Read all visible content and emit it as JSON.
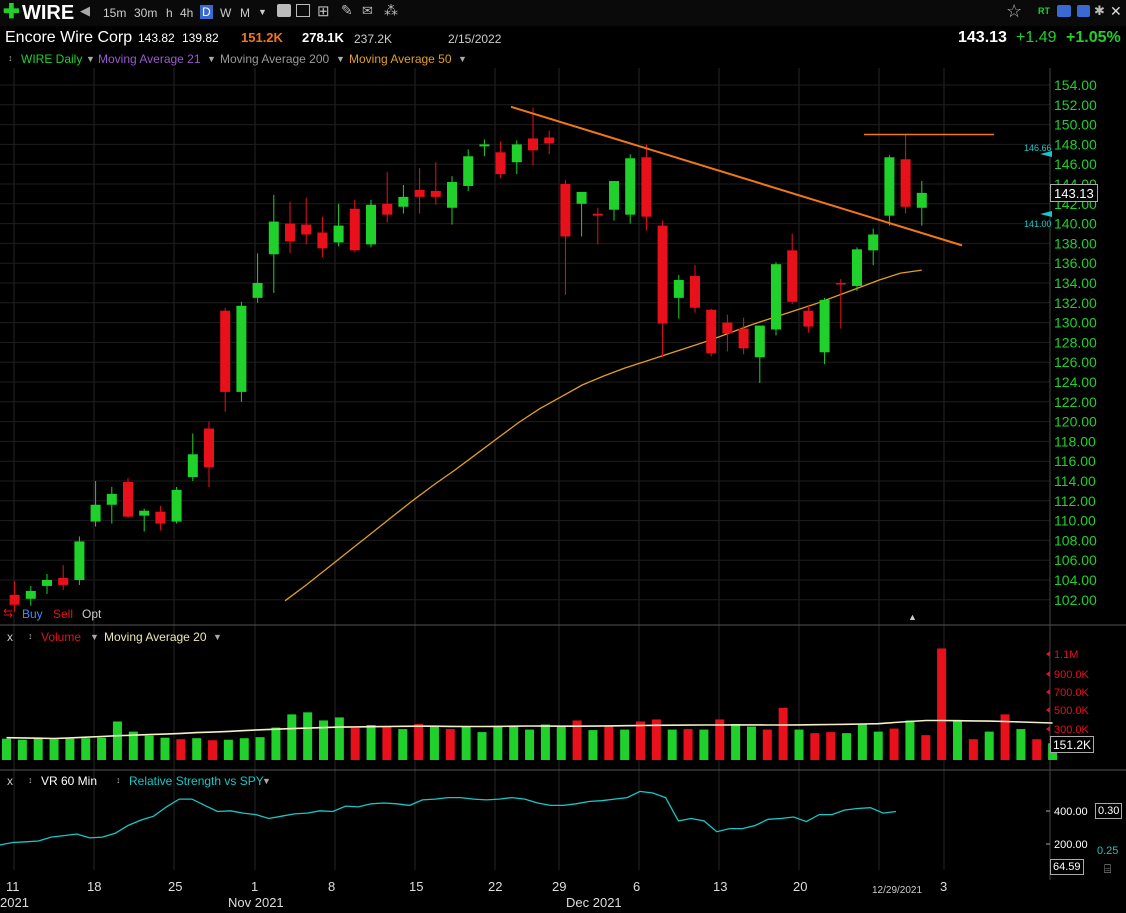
{
  "toolbar": {
    "symbol": "WIRE",
    "timeframes": [
      "15m",
      "30m",
      "h",
      "4h",
      "D",
      "W",
      "M"
    ],
    "selected_timeframe": "D"
  },
  "quote": {
    "name": "Encore Wire Corp",
    "high": "143.82",
    "low": "139.82",
    "vol1": "151.2K",
    "vol2": "278.1K",
    "vol3": "237.2K",
    "date": "2/15/2022",
    "last": "143.13",
    "change": "+1.49",
    "change_pct": "+1.05%"
  },
  "price_legend": {
    "series_label": "WIRE Daily",
    "ma21": "Moving Average 21",
    "ma200": "Moving Average 200",
    "ma50": "Moving Average 50"
  },
  "order_buttons": {
    "buy": "Buy",
    "sell": "Sell",
    "opt": "Opt"
  },
  "volume_legend": {
    "close": "x",
    "label": "Volume",
    "ma": "Moving Average 20"
  },
  "rs_legend": {
    "close": "x",
    "vr": "VR 60 Min",
    "rs": "Relative Strength vs SPY"
  },
  "price_tags": {
    "last": "143.13",
    "upper": "146.66",
    "lower": "141.00"
  },
  "volume_tags": {
    "last": "151.2K"
  },
  "rs_tags": {
    "value": "0.30",
    "value2": "0.25",
    "last": "64.59"
  },
  "date_label": "12/29/2021",
  "colors": {
    "up": "#1fd12a",
    "down": "#e8101a",
    "ma50": "#e0a020",
    "trend": "#f07818",
    "rs": "#16c8c8",
    "axis_text": "#1fd12a"
  },
  "chart_data": [
    {
      "type": "candlestick",
      "title": "WIRE Daily",
      "ylim": [
        100,
        156
      ],
      "y_ticks": [
        "154.00",
        "152.00",
        "150.00",
        "148.00",
        "146.00",
        "144.00",
        "142.00",
        "140.00",
        "138.00",
        "136.00",
        "134.00",
        "132.00",
        "130.00",
        "128.00",
        "126.00",
        "124.00",
        "122.00",
        "120.00",
        "118.00",
        "116.00",
        "114.00",
        "112.00",
        "110.00",
        "108.00",
        "106.00",
        "104.00",
        "102.00"
      ],
      "x_ticks": [
        "11",
        "18",
        "25",
        "1",
        "8",
        "15",
        "22",
        "29",
        "6",
        "13",
        "20",
        "3"
      ],
      "x_month_labels": [
        "2021",
        "Nov 2021",
        "Dec 2021"
      ],
      "candles": [
        {
          "o": 102.5,
          "h": 103.9,
          "l": 100.8,
          "c": 101.5
        },
        {
          "o": 102.1,
          "h": 103.4,
          "l": 101.4,
          "c": 102.9
        },
        {
          "o": 103.4,
          "h": 104.6,
          "l": 102.6,
          "c": 104.0
        },
        {
          "o": 104.2,
          "h": 105.5,
          "l": 103.0,
          "c": 103.5
        },
        {
          "o": 104.0,
          "h": 108.4,
          "l": 103.5,
          "c": 107.9
        },
        {
          "o": 109.9,
          "h": 114.0,
          "l": 109.4,
          "c": 111.6
        },
        {
          "o": 111.6,
          "h": 113.4,
          "l": 109.7,
          "c": 112.7
        },
        {
          "o": 113.9,
          "h": 114.3,
          "l": 110.3,
          "c": 110.4
        },
        {
          "o": 110.5,
          "h": 111.2,
          "l": 108.9,
          "c": 111.0
        },
        {
          "o": 110.9,
          "h": 111.5,
          "l": 109.0,
          "c": 109.7
        },
        {
          "o": 109.9,
          "h": 113.4,
          "l": 109.7,
          "c": 113.1
        },
        {
          "o": 114.4,
          "h": 118.8,
          "l": 114.0,
          "c": 116.7
        },
        {
          "o": 119.3,
          "h": 120.0,
          "l": 113.4,
          "c": 115.4
        },
        {
          "o": 131.2,
          "h": 131.5,
          "l": 121.0,
          "c": 123.0
        },
        {
          "o": 123.0,
          "h": 132.1,
          "l": 122.0,
          "c": 131.7
        },
        {
          "o": 132.5,
          "h": 137.0,
          "l": 132.0,
          "c": 134.0
        },
        {
          "o": 136.9,
          "h": 142.9,
          "l": 133.0,
          "c": 140.2
        },
        {
          "o": 140.0,
          "h": 142.2,
          "l": 137.0,
          "c": 138.2
        },
        {
          "o": 139.9,
          "h": 142.6,
          "l": 137.9,
          "c": 138.9
        },
        {
          "o": 139.1,
          "h": 140.7,
          "l": 136.6,
          "c": 137.5
        },
        {
          "o": 138.1,
          "h": 142.0,
          "l": 137.7,
          "c": 139.8
        },
        {
          "o": 141.5,
          "h": 142.4,
          "l": 137.1,
          "c": 137.3
        },
        {
          "o": 137.9,
          "h": 142.4,
          "l": 137.6,
          "c": 141.9
        },
        {
          "o": 142.0,
          "h": 145.2,
          "l": 140.1,
          "c": 140.9
        },
        {
          "o": 141.7,
          "h": 143.9,
          "l": 141.0,
          "c": 142.7
        },
        {
          "o": 143.4,
          "h": 145.6,
          "l": 141.0,
          "c": 142.7
        },
        {
          "o": 143.3,
          "h": 146.2,
          "l": 141.9,
          "c": 142.7
        },
        {
          "o": 141.6,
          "h": 144.8,
          "l": 139.9,
          "c": 144.2
        },
        {
          "o": 143.8,
          "h": 147.5,
          "l": 143.3,
          "c": 146.8
        },
        {
          "o": 147.8,
          "h": 148.5,
          "l": 146.8,
          "c": 148.0
        },
        {
          "o": 147.2,
          "h": 148.3,
          "l": 144.6,
          "c": 145.0
        },
        {
          "o": 146.2,
          "h": 148.4,
          "l": 145.0,
          "c": 148.0
        },
        {
          "o": 148.6,
          "h": 151.7,
          "l": 145.9,
          "c": 147.4
        },
        {
          "o": 148.7,
          "h": 149.4,
          "l": 147.0,
          "c": 148.1
        },
        {
          "o": 144.0,
          "h": 144.4,
          "l": 132.8,
          "c": 138.7
        },
        {
          "o": 142.0,
          "h": 142.9,
          "l": 138.7,
          "c": 143.2
        },
        {
          "o": 141.0,
          "h": 141.6,
          "l": 137.9,
          "c": 140.8
        },
        {
          "o": 141.4,
          "h": 144.1,
          "l": 140.3,
          "c": 144.3
        },
        {
          "o": 140.9,
          "h": 147.0,
          "l": 140.0,
          "c": 146.6
        },
        {
          "o": 146.7,
          "h": 148.0,
          "l": 139.3,
          "c": 140.7
        },
        {
          "o": 139.8,
          "h": 140.3,
          "l": 126.5,
          "c": 129.9
        },
        {
          "o": 132.5,
          "h": 134.8,
          "l": 130.4,
          "c": 134.3
        },
        {
          "o": 134.7,
          "h": 135.8,
          "l": 131.0,
          "c": 131.5
        },
        {
          "o": 131.3,
          "h": 131.4,
          "l": 126.6,
          "c": 126.9
        },
        {
          "o": 130.0,
          "h": 130.8,
          "l": 127.1,
          "c": 128.9
        },
        {
          "o": 129.4,
          "h": 130.5,
          "l": 126.8,
          "c": 127.4
        },
        {
          "o": 126.5,
          "h": 129.7,
          "l": 123.9,
          "c": 129.7
        },
        {
          "o": 129.3,
          "h": 136.1,
          "l": 128.7,
          "c": 135.9
        },
        {
          "o": 137.3,
          "h": 139.0,
          "l": 131.9,
          "c": 132.1
        },
        {
          "o": 131.2,
          "h": 131.8,
          "l": 129.0,
          "c": 129.6
        },
        {
          "o": 127.0,
          "h": 132.5,
          "l": 125.8,
          "c": 132.3
        },
        {
          "o": 134.0,
          "h": 134.4,
          "l": 129.4,
          "c": 133.9
        },
        {
          "o": 133.7,
          "h": 137.6,
          "l": 133.2,
          "c": 137.4
        },
        {
          "o": 137.3,
          "h": 139.5,
          "l": 135.8,
          "c": 138.9
        },
        {
          "o": 140.8,
          "h": 146.9,
          "l": 139.8,
          "c": 146.7
        },
        {
          "o": 146.5,
          "h": 149.0,
          "l": 141.0,
          "c": 141.7
        },
        {
          "o": 141.6,
          "h": 144.3,
          "l": 139.8,
          "c": 143.1
        }
      ],
      "ma50": [
        101.9,
        103.5,
        105.2,
        106.9,
        108.6,
        110.3,
        112.0,
        113.6,
        115.1,
        116.7,
        118.3,
        119.9,
        121.3,
        122.5,
        123.7,
        124.6,
        125.4,
        126.1,
        126.8,
        127.5,
        128.2,
        129.0,
        129.8,
        130.5,
        131.2,
        131.9,
        132.7,
        133.5,
        134.3,
        135.0,
        135.3
      ],
      "trendline": {
        "from": [
          151.8,
          "11/23/2021"
        ],
        "to": [
          137.8,
          "12/31/2021"
        ]
      },
      "resistance": 149.0
    },
    {
      "type": "bar",
      "title": "Volume",
      "y_ticks": [
        "1.1M",
        "900.0K",
        "700.0K",
        "500.0K",
        "300.0K"
      ],
      "values": [
        210,
        200,
        215,
        205,
        210,
        215,
        220,
        380,
        280,
        240,
        220,
        205,
        215,
        195,
        200,
        215,
        225,
        320,
        450,
        470,
        390,
        420,
        315,
        345,
        330,
        305,
        355,
        340,
        305,
        330,
        275,
        325,
        330,
        300,
        350,
        340,
        390,
        295,
        330,
        300,
        380,
        400,
        300,
        305,
        300,
        400,
        355,
        330,
        300,
        515,
        300,
        265,
        275,
        265,
        355,
        280,
        310,
        390,
        245,
        1100,
        395,
        205,
        280,
        450,
        305,
        205,
        165
      ],
      "up": [
        true,
        true,
        true,
        true,
        true,
        true,
        true,
        true,
        true,
        true,
        true,
        false,
        true,
        false,
        true,
        true,
        true,
        true,
        true,
        true,
        true,
        true,
        false,
        true,
        false,
        true,
        false,
        true,
        false,
        true,
        true,
        true,
        true,
        true,
        true,
        true,
        false,
        true,
        false,
        true,
        false,
        false,
        true,
        false,
        true,
        false,
        true,
        true,
        false,
        false,
        true,
        false,
        false,
        true,
        true,
        true,
        false,
        true,
        false,
        false,
        true,
        false,
        true,
        false,
        true,
        false,
        true
      ],
      "ma20": [
        220,
        218,
        215,
        212,
        218,
        225,
        232,
        240,
        245,
        250,
        255,
        262,
        270,
        275,
        282,
        290,
        298,
        304,
        310,
        315,
        320,
        324,
        326,
        328,
        330,
        332,
        333,
        333,
        331,
        330,
        330,
        331,
        333,
        335,
        334,
        333,
        333,
        334,
        336,
        338,
        340,
        342,
        343,
        344,
        345,
        345,
        346,
        346,
        345,
        345,
        346,
        348,
        350,
        352,
        355,
        358,
        370,
        380,
        390,
        390,
        388,
        386,
        384,
        380,
        375,
        370,
        365
      ]
    },
    {
      "type": "line",
      "title": "Relative Strength vs SPY",
      "y_ticks": [
        "400.00",
        "200.00"
      ],
      "values": [
        175,
        190,
        195,
        200,
        225,
        235,
        245,
        220,
        225,
        250,
        300,
        335,
        360,
        420,
        470,
        470,
        430,
        390,
        395,
        380,
        370,
        345,
        360,
        375,
        380,
        395,
        390,
        425,
        420,
        440,
        445,
        440,
        430,
        465,
        470,
        480,
        480,
        470,
        465,
        470,
        480,
        470,
        445,
        430,
        430,
        440,
        455,
        460,
        470,
        480,
        520,
        510,
        480,
        330,
        345,
        330,
        260,
        280,
        280,
        300,
        340,
        345,
        355,
        325,
        370,
        370,
        400,
        410,
        415,
        380,
        390
      ]
    }
  ]
}
